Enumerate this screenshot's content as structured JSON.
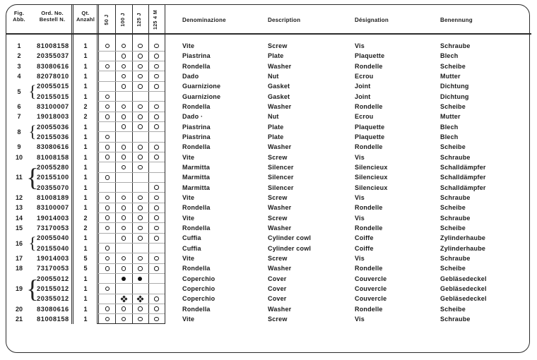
{
  "header": {
    "fig_line1": "Fig.",
    "fig_line2": "Abb.",
    "ord_line1": "Ord. No.",
    "ord_line2": "Bestell N.",
    "qty_line1": "Qt.",
    "qty_line2": "Anzahl",
    "models": [
      "50 J",
      "100 J",
      "125 J",
      "125 4 M"
    ],
    "name_columns": [
      "Denominazione",
      "Description",
      "Désignation",
      "Benennung"
    ]
  },
  "legend": {
    "mark_open_circle": "fitted on model",
    "mark_black_dot": "variant mark",
    "mark_cross": "variant mark"
  },
  "colors": {
    "ink": "#1a1a1a",
    "rule": "#2b2b2b",
    "grid_separator": "#ababab",
    "paper": "#ffffff"
  },
  "rows": [
    {
      "fig": "1",
      "part": "81008158",
      "qty": "1",
      "marks": [
        "o",
        "o",
        "o",
        "o"
      ],
      "it": "Vite",
      "en": "Screw",
      "fr": "Vis",
      "de": "Schraube"
    },
    {
      "fig": "2",
      "part": "20355037",
      "qty": "1",
      "marks": [
        "",
        "o",
        "o",
        "o"
      ],
      "it": "Piastrina",
      "en": "Plate",
      "fr": "Plaquette",
      "de": "Blech"
    },
    {
      "fig": "3",
      "part": "83080616",
      "qty": "1",
      "marks": [
        "o",
        "o",
        "o",
        "o"
      ],
      "it": "Rondella",
      "en": "Washer",
      "fr": "Rondelle",
      "de": "Scheibe"
    },
    {
      "fig": "4",
      "part": "82078010",
      "qty": "1",
      "marks": [
        "",
        "o",
        "o",
        "o"
      ],
      "it": "Dado",
      "en": "Nut",
      "fr": "Ecrou",
      "de": "Mutter"
    },
    {
      "fig": "5",
      "group": 2,
      "part": "20055015",
      "qty": "1",
      "marks": [
        "",
        "o",
        "o",
        "o"
      ],
      "it": "Guarnizione",
      "en": "Gasket",
      "fr": "Joint",
      "de": "Dichtung"
    },
    {
      "fig": "",
      "part": "20155015",
      "qty": "1",
      "marks": [
        "o",
        "",
        "",
        ""
      ],
      "it": "Guarnizione",
      "en": "Gasket",
      "fr": "Joint",
      "de": "Dichtung"
    },
    {
      "fig": "6",
      "part": "83100007",
      "qty": "2",
      "marks": [
        "o",
        "o",
        "o",
        "o"
      ],
      "it": "Rondella",
      "en": "Washer",
      "fr": "Rondelle",
      "de": "Scheibe"
    },
    {
      "fig": "7",
      "part": "19018003",
      "qty": "2",
      "marks": [
        "o",
        "o",
        "o",
        "o"
      ],
      "it": "Dado ·",
      "en": "Nut",
      "fr": "Ecrou",
      "de": "Mutter"
    },
    {
      "fig": "8",
      "group": 2,
      "part": "20055036",
      "qty": "1",
      "marks": [
        "",
        "o",
        "o",
        "o"
      ],
      "it": "Piastrina",
      "en": "Plate",
      "fr": "Plaquette",
      "de": "Blech"
    },
    {
      "fig": "",
      "part": "20155036",
      "qty": "1",
      "marks": [
        "o",
        "",
        "",
        ""
      ],
      "it": "Piastrina",
      "en": "Plate",
      "fr": "Plaquette",
      "de": "Blech"
    },
    {
      "fig": "9",
      "part": "83080616",
      "qty": "1",
      "marks": [
        "o",
        "o",
        "o",
        "o"
      ],
      "it": "Rondella",
      "en": "Washer",
      "fr": "Rondelle",
      "de": "Scheibe"
    },
    {
      "fig": "10",
      "part": "81008158",
      "qty": "1",
      "marks": [
        "o",
        "o",
        "o",
        "o"
      ],
      "it": "Vite",
      "en": "Screw",
      "fr": "Vis",
      "de": "Schraube"
    },
    {
      "fig": "11",
      "group": 3,
      "part": "20055280",
      "qty": "1",
      "marks": [
        "",
        "o",
        "o",
        ""
      ],
      "it": "Marmitta",
      "en": "Silencer",
      "fr": "Silencieux",
      "de": "Schalldämpfer"
    },
    {
      "fig": "",
      "part": "20155100",
      "qty": "1",
      "marks": [
        "o",
        "",
        "",
        ""
      ],
      "it": "Marmitta",
      "en": "Silencer",
      "fr": "Silencieux",
      "de": "Schalldämpfer"
    },
    {
      "fig": "",
      "part": "20355070",
      "qty": "1",
      "marks": [
        "",
        "",
        "",
        "o"
      ],
      "it": "Marmitta",
      "en": "Silencer",
      "fr": "Silencieux",
      "de": "Schalldämpfer"
    },
    {
      "fig": "12",
      "part": "81008189",
      "qty": "1",
      "marks": [
        "o",
        "o",
        "o",
        "o"
      ],
      "it": "Vite",
      "en": "Screw",
      "fr": "Vis",
      "de": "Schraube"
    },
    {
      "fig": "13",
      "part": "83100007",
      "qty": "1",
      "marks": [
        "o",
        "o",
        "o",
        "o"
      ],
      "it": "Rondella",
      "en": "Washer",
      "fr": "Rondelle",
      "de": "Scheibe"
    },
    {
      "fig": "14",
      "part": "19014003",
      "qty": "2",
      "marks": [
        "o",
        "o",
        "o",
        "o"
      ],
      "it": "Vite",
      "en": "Screw",
      "fr": "Vis",
      "de": "Schraube"
    },
    {
      "fig": "15",
      "part": "73170053",
      "qty": "2",
      "marks": [
        "o",
        "o",
        "o",
        "o"
      ],
      "it": "Rondella",
      "en": "Washer",
      "fr": "Rondelle",
      "de": "Scheibe"
    },
    {
      "fig": "16",
      "group": 2,
      "part": "20055040",
      "qty": "1",
      "marks": [
        "",
        "o",
        "o",
        "o"
      ],
      "it": "Cuffia",
      "en": "Cylinder  cowl",
      "fr": "Coiffe",
      "de": "Zylinderhaube"
    },
    {
      "fig": "",
      "part": "20155040",
      "qty": "1",
      "marks": [
        "o",
        "",
        "",
        ""
      ],
      "it": "Cuffia",
      "en": "Cylinder  cowl",
      "fr": "Coiffe",
      "de": "Zylinderhaube"
    },
    {
      "fig": "17",
      "part": "19014003",
      "qty": "5",
      "marks": [
        "o",
        "o",
        "o",
        "o"
      ],
      "it": "Vite",
      "en": "Screw",
      "fr": "Vis",
      "de": "Schraube"
    },
    {
      "fig": "18",
      "part": "73170053",
      "qty": "5",
      "marks": [
        "o",
        "o",
        "o",
        "o"
      ],
      "it": "Rondella",
      "en": "Washer",
      "fr": "Rondelle",
      "de": "Scheibe"
    },
    {
      "fig": "19",
      "group": 3,
      "part": "20055012",
      "qty": "1",
      "marks": [
        "",
        "b",
        "b",
        ""
      ],
      "it": "Coperchio",
      "en": "Cover",
      "fr": "Couvercle",
      "de": "Gebläsedeckel"
    },
    {
      "fig": "",
      "part": "20155012",
      "qty": "1",
      "marks": [
        "o",
        "",
        "",
        ""
      ],
      "it": "Coperchio",
      "en": "Cover",
      "fr": "Couvercle",
      "de": "Gebläsedeckel"
    },
    {
      "fig": "",
      "part": "20355012",
      "qty": "1",
      "marks": [
        "",
        "x",
        "x",
        "o"
      ],
      "it": "Coperchio",
      "en": "Cover",
      "fr": "Couvercle",
      "de": "Gebläsedeckel"
    },
    {
      "fig": "20",
      "part": "83080616",
      "qty": "1",
      "marks": [
        "o",
        "o",
        "o",
        "o"
      ],
      "it": "Rondella",
      "en": "Washer",
      "fr": "Rondelle",
      "de": "Scheibe"
    },
    {
      "fig": "21",
      "part": "81008158",
      "qty": "1",
      "marks": [
        "o",
        "o",
        "o",
        "o"
      ],
      "it": "Vite",
      "en": "Screw",
      "fr": "Vis",
      "de": "Schraube"
    }
  ]
}
